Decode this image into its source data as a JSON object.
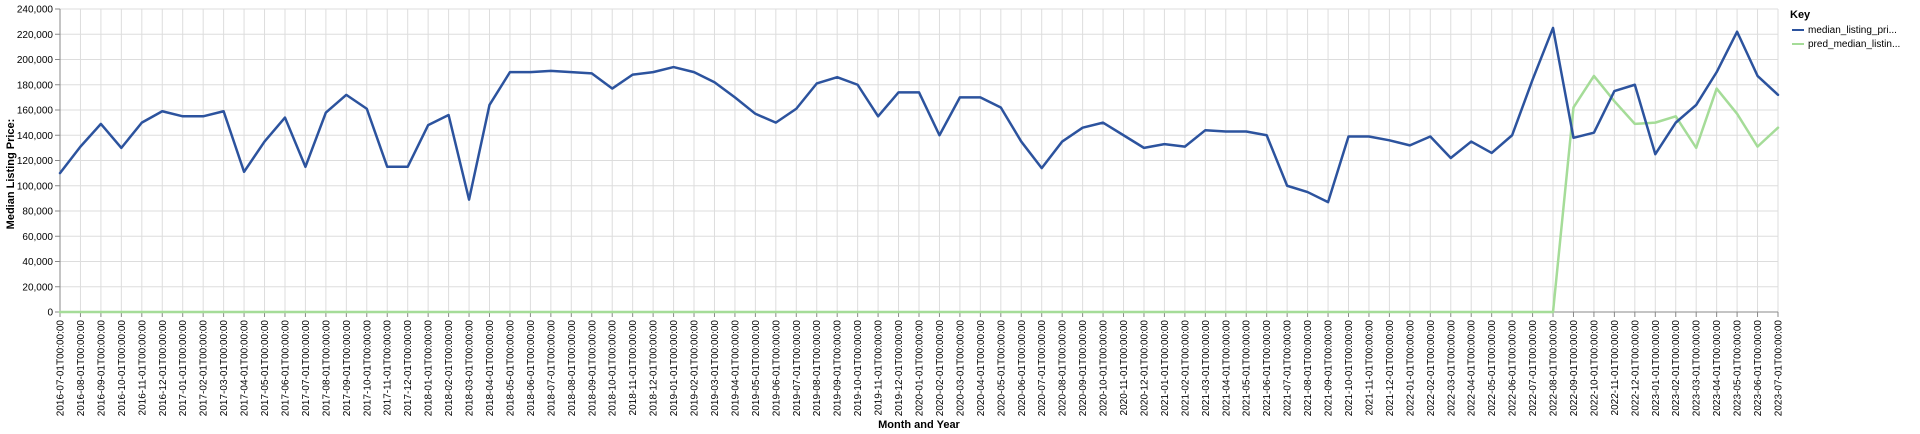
{
  "chart_data": {
    "type": "line",
    "xlabel": "Month and Year",
    "ylabel": "Median Listing Price:",
    "ylim": [
      0,
      240000
    ],
    "yticks": [
      0,
      20000,
      40000,
      60000,
      80000,
      100000,
      120000,
      140000,
      160000,
      180000,
      200000,
      220000,
      240000
    ],
    "ytick_labels": [
      "0",
      "20,000",
      "40,000",
      "60,000",
      "80,000",
      "100,000",
      "120,000",
      "140,000",
      "160,000",
      "180,000",
      "200,000",
      "220,000",
      "240,000"
    ],
    "grid": true,
    "legend": {
      "title": "Key",
      "position": "top-right"
    },
    "x": [
      "2016-07-01T00:00:00",
      "2016-08-01T00:00:00",
      "2016-09-01T00:00:00",
      "2016-10-01T00:00:00",
      "2016-11-01T00:00:00",
      "2016-12-01T00:00:00",
      "2017-01-01T00:00:00",
      "2017-02-01T00:00:00",
      "2017-03-01T00:00:00",
      "2017-04-01T00:00:00",
      "2017-05-01T00:00:00",
      "2017-06-01T00:00:00",
      "2017-07-01T00:00:00",
      "2017-08-01T00:00:00",
      "2017-09-01T00:00:00",
      "2017-10-01T00:00:00",
      "2017-11-01T00:00:00",
      "2017-12-01T00:00:00",
      "2018-01-01T00:00:00",
      "2018-02-01T00:00:00",
      "2018-03-01T00:00:00",
      "2018-04-01T00:00:00",
      "2018-05-01T00:00:00",
      "2018-06-01T00:00:00",
      "2018-07-01T00:00:00",
      "2018-08-01T00:00:00",
      "2018-09-01T00:00:00",
      "2018-10-01T00:00:00",
      "2018-11-01T00:00:00",
      "2018-12-01T00:00:00",
      "2019-01-01T00:00:00",
      "2019-02-01T00:00:00",
      "2019-03-01T00:00:00",
      "2019-04-01T00:00:00",
      "2019-05-01T00:00:00",
      "2019-06-01T00:00:00",
      "2019-07-01T00:00:00",
      "2019-08-01T00:00:00",
      "2019-09-01T00:00:00",
      "2019-10-01T00:00:00",
      "2019-11-01T00:00:00",
      "2019-12-01T00:00:00",
      "2020-01-01T00:00:00",
      "2020-02-01T00:00:00",
      "2020-03-01T00:00:00",
      "2020-04-01T00:00:00",
      "2020-05-01T00:00:00",
      "2020-06-01T00:00:00",
      "2020-07-01T00:00:00",
      "2020-08-01T00:00:00",
      "2020-09-01T00:00:00",
      "2020-10-01T00:00:00",
      "2020-11-01T00:00:00",
      "2020-12-01T00:00:00",
      "2021-01-01T00:00:00",
      "2021-02-01T00:00:00",
      "2021-03-01T00:00:00",
      "2021-04-01T00:00:00",
      "2021-05-01T00:00:00",
      "2021-06-01T00:00:00",
      "2021-07-01T00:00:00",
      "2021-08-01T00:00:00",
      "2021-09-01T00:00:00",
      "2021-10-01T00:00:00",
      "2021-11-01T00:00:00",
      "2021-12-01T00:00:00",
      "2022-01-01T00:00:00",
      "2022-02-01T00:00:00",
      "2022-03-01T00:00:00",
      "2022-04-01T00:00:00",
      "2022-05-01T00:00:00",
      "2022-06-01T00:00:00",
      "2022-07-01T00:00:00",
      "2022-08-01T00:00:00",
      "2022-09-01T00:00:00",
      "2022-10-01T00:00:00",
      "2022-11-01T00:00:00",
      "2022-12-01T00:00:00",
      "2023-01-01T00:00:00",
      "2023-02-01T00:00:00",
      "2023-03-01T00:00:00",
      "2023-04-01T00:00:00",
      "2023-05-01T00:00:00",
      "2023-06-01T00:00:00",
      "2023-07-01T00:00:00"
    ],
    "series": [
      {
        "name": "median_listing_pri...",
        "color": "#2c539e",
        "values": [
          110000,
          131000,
          149000,
          130000,
          150000,
          159000,
          155000,
          155000,
          159000,
          111000,
          135000,
          154000,
          115000,
          158000,
          172000,
          161000,
          115000,
          115000,
          148000,
          156000,
          89000,
          164000,
          190000,
          190000,
          191000,
          190000,
          189000,
          177000,
          188000,
          190000,
          194000,
          190000,
          182000,
          170000,
          157000,
          150000,
          161000,
          181000,
          186000,
          180000,
          155000,
          174000,
          174000,
          140000,
          170000,
          170000,
          162000,
          135000,
          114000,
          135000,
          146000,
          150000,
          140000,
          130000,
          133000,
          131000,
          144000,
          143000,
          143000,
          140000,
          100000,
          95000,
          87000,
          139000,
          139000,
          136000,
          132000,
          139000,
          122000,
          135000,
          126000,
          140000,
          184000,
          225000,
          138000,
          142000,
          175000,
          180000,
          125000,
          150000,
          164000,
          190000,
          222000,
          187000,
          172000
        ]
      },
      {
        "name": "pred_median_listin...",
        "color": "#a5dc98",
        "values": [
          0,
          0,
          0,
          0,
          0,
          0,
          0,
          0,
          0,
          0,
          0,
          0,
          0,
          0,
          0,
          0,
          0,
          0,
          0,
          0,
          0,
          0,
          0,
          0,
          0,
          0,
          0,
          0,
          0,
          0,
          0,
          0,
          0,
          0,
          0,
          0,
          0,
          0,
          0,
          0,
          0,
          0,
          0,
          0,
          0,
          0,
          0,
          0,
          0,
          0,
          0,
          0,
          0,
          0,
          0,
          0,
          0,
          0,
          0,
          0,
          0,
          0,
          0,
          0,
          0,
          0,
          0,
          0,
          0,
          0,
          0,
          0,
          0,
          0,
          162000,
          187000,
          167000,
          149000,
          150000,
          155000,
          130000,
          177000,
          157000,
          131000,
          146000
        ]
      }
    ]
  }
}
